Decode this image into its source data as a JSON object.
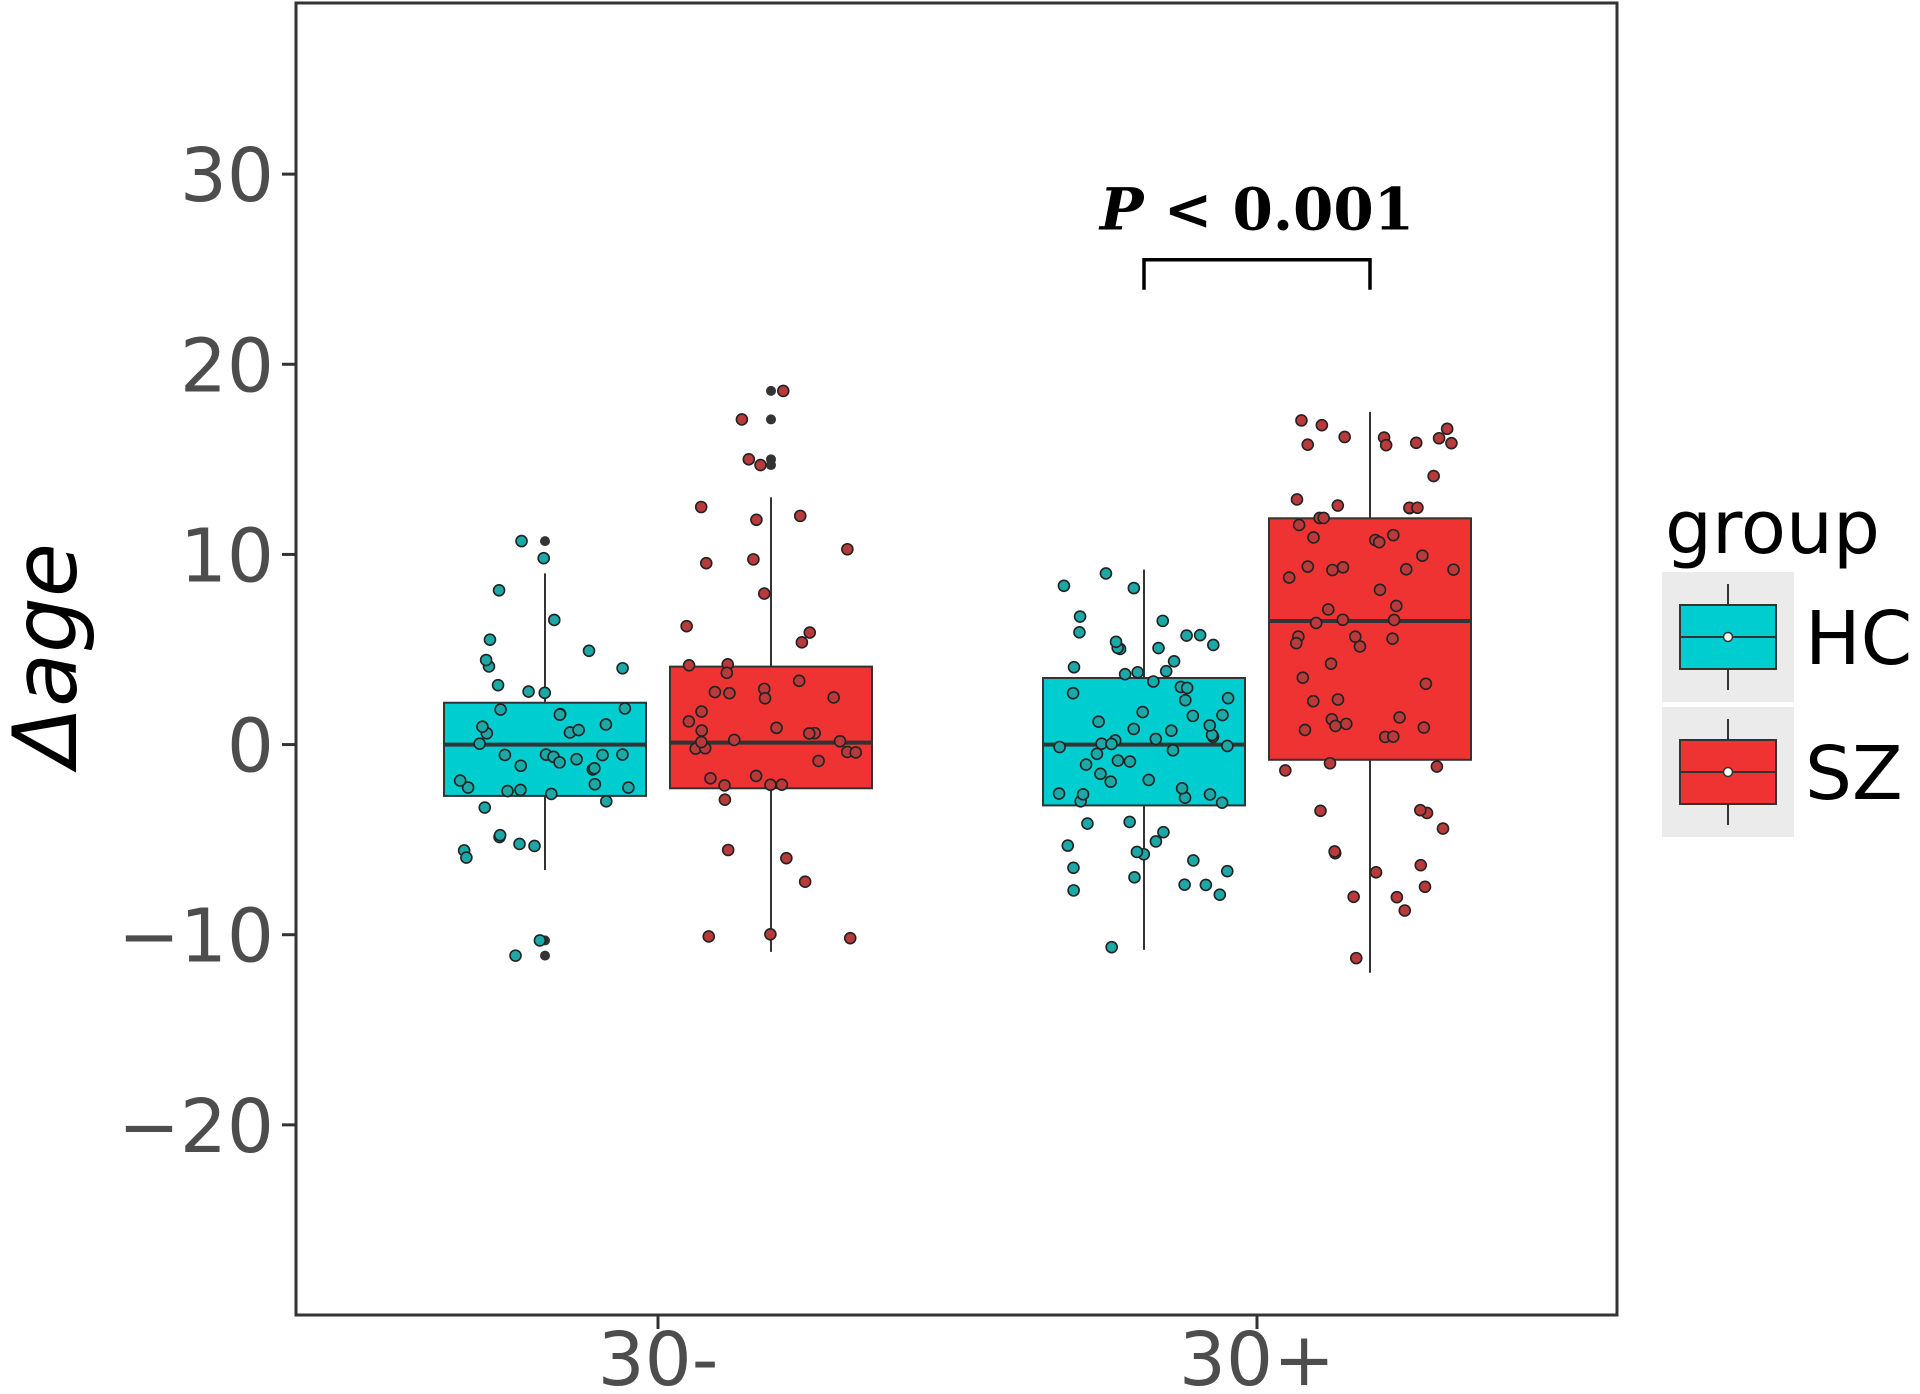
{
  "chart_data": {
    "type": "boxplot",
    "ylabel": "Δage",
    "ylim": [
      -30,
      39
    ],
    "y_ticks": [
      -20,
      -10,
      0,
      10,
      20,
      30
    ],
    "y_tick_labels": [
      "−20",
      "−10",
      "0",
      "10",
      "20",
      "30"
    ],
    "categories": [
      "30-",
      "30+"
    ],
    "legend": {
      "title": "group",
      "position": "right",
      "entries": [
        {
          "name": "HC",
          "color": "#00CDD0"
        },
        {
          "name": "SZ",
          "color": "#EF3333"
        }
      ]
    },
    "series": [
      {
        "name": "HC",
        "color": "#00CDD0",
        "point_color": "#1BA8A6",
        "boxes": [
          {
            "category": "30-",
            "q1": -2.7,
            "median": 0.0,
            "q3": 2.2,
            "whisker_low": -6.6,
            "whisker_high": 9.0,
            "outliers": [
              10.7,
              9.8,
              -10.3,
              -11.1
            ]
          },
          {
            "category": "30+",
            "q1": -3.2,
            "median": 0.0,
            "q3": 3.5,
            "whisker_low": -10.8,
            "whisker_high": 9.2,
            "outliers": []
          }
        ]
      },
      {
        "name": "SZ",
        "color": "#EF3333",
        "point_color": "#B83A3A",
        "boxes": [
          {
            "category": "30-",
            "q1": -2.3,
            "median": 0.1,
            "q3": 4.1,
            "whisker_low": -10.9,
            "whisker_high": 13.0,
            "outliers": [
              18.6,
              17.1,
              15.0,
              14.7
            ]
          },
          {
            "category": "30+",
            "q1": -0.8,
            "median": 6.5,
            "q3": 11.9,
            "whisker_low": -12.0,
            "whisker_high": 17.5,
            "outliers": []
          }
        ]
      }
    ],
    "annotation": {
      "text_italic": "P",
      "text_rest": "< 0.001",
      "category": "30+",
      "y": 25.5
    }
  }
}
